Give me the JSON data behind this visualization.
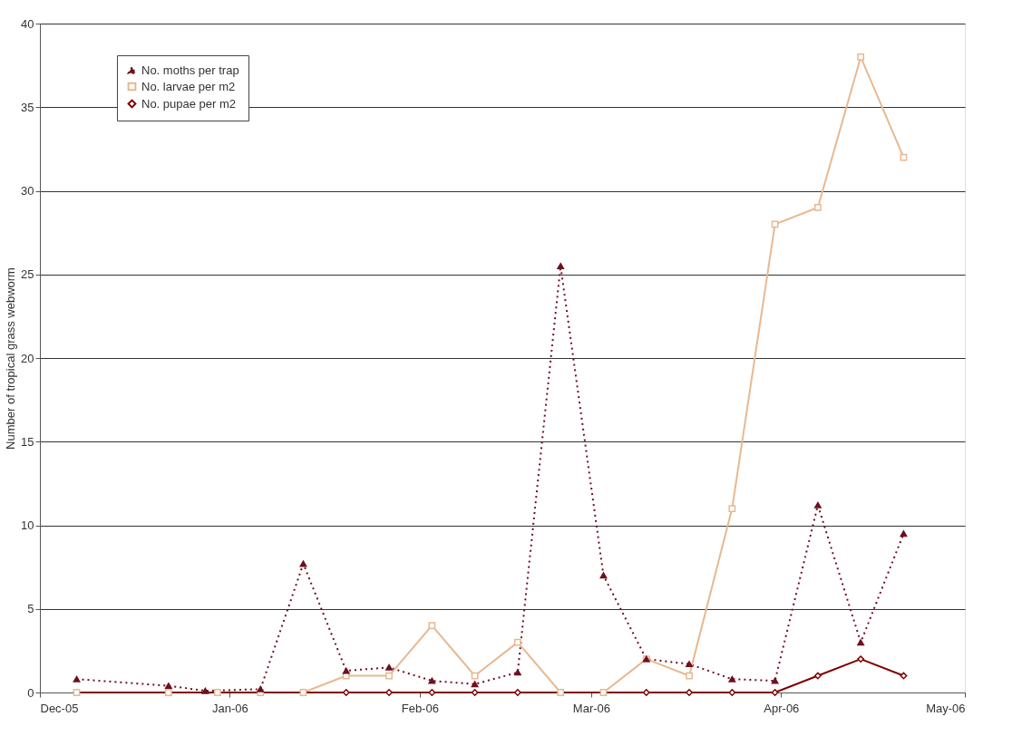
{
  "chart_data": {
    "type": "line",
    "ylabel": "Number of tropical grass webworm",
    "xlim": [
      "2005-12-01",
      "2006-05-01"
    ],
    "xticks": [
      {
        "value": "2005-12-01",
        "label": "Dec-05"
      },
      {
        "value": "2006-01-01",
        "label": "Jan-06"
      },
      {
        "value": "2006-02-01",
        "label": "Feb-06"
      },
      {
        "value": "2006-03-01",
        "label": "Mar-06"
      },
      {
        "value": "2006-04-01",
        "label": "Apr-06"
      },
      {
        "value": "2006-05-01",
        "label": "May-06"
      }
    ],
    "ylim": [
      0,
      40
    ],
    "yticks": [
      0,
      5,
      10,
      15,
      20,
      25,
      30,
      35,
      40
    ],
    "grid": "y",
    "legend": "top left",
    "x": [
      "2005-12-07",
      "2005-12-22",
      "2005-12-30",
      "2006-01-06",
      "2006-01-13",
      "2006-01-20",
      "2006-01-27",
      "2006-02-03",
      "2006-02-10",
      "2006-02-17",
      "2006-02-24",
      "2006-03-03",
      "2006-03-10",
      "2006-03-17",
      "2006-03-24",
      "2006-03-31",
      "2006-04-07",
      "2006-04-14",
      "2006-04-21"
    ],
    "series": [
      {
        "name": "No. moths per trap",
        "color": "#6e1020",
        "marker": "triangle",
        "line_style": "dotted",
        "x": [
          "2005-12-07",
          "2005-12-22",
          "2005-12-28",
          "2006-01-06",
          "2006-01-13",
          "2006-01-20",
          "2006-01-27",
          "2006-02-03",
          "2006-02-10",
          "2006-02-17",
          "2006-02-24",
          "2006-03-03",
          "2006-03-10",
          "2006-03-17",
          "2006-03-24",
          "2006-03-31",
          "2006-04-07",
          "2006-04-14",
          "2006-04-21"
        ],
        "values": [
          0.8,
          0.4,
          0.1,
          0.2,
          7.7,
          1.3,
          1.5,
          0.7,
          0.5,
          1.2,
          25.5,
          7,
          2,
          1.7,
          0.8,
          0.7,
          11.2,
          3,
          9.5
        ]
      },
      {
        "name": "No. larvae per m2",
        "color": "#e8b890",
        "marker": "square",
        "line_style": "solid",
        "values": [
          0,
          0,
          0,
          0,
          0,
          1,
          1,
          4,
          1,
          3,
          0,
          0,
          2,
          1,
          11,
          28,
          29,
          38,
          32
        ]
      },
      {
        "name": "No. pupae per m2",
        "color": "#800000",
        "marker": "diamond",
        "line_style": "solid",
        "values": [
          0,
          0,
          0,
          0,
          0,
          0,
          0,
          0,
          0,
          0,
          0,
          0,
          0,
          0,
          0,
          0,
          1,
          2,
          1
        ]
      }
    ]
  }
}
